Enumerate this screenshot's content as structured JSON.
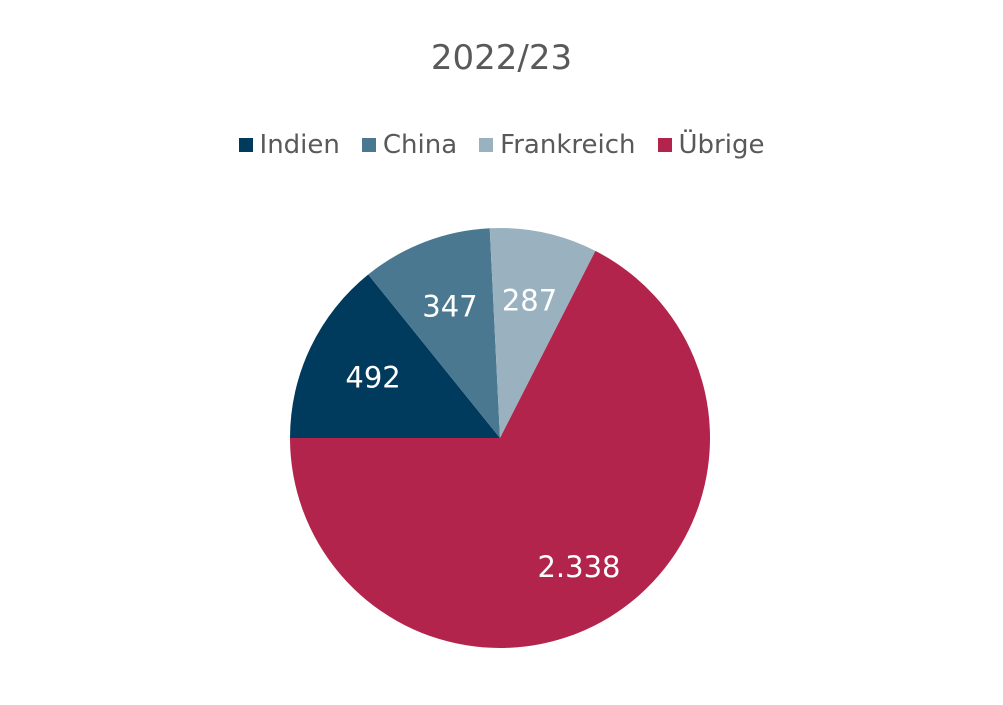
{
  "chart_data": {
    "type": "pie",
    "title": "2022/23",
    "legend_position": "top",
    "categories": [
      "Indien",
      "China",
      "Frankreich",
      "Übrige"
    ],
    "values": [
      492,
      347,
      287,
      2338
    ],
    "value_labels": [
      "492",
      "347",
      "287",
      "2.338"
    ],
    "colors": [
      "#003a5d",
      "#4a7891",
      "#9ab2c0",
      "#b2244b"
    ]
  }
}
